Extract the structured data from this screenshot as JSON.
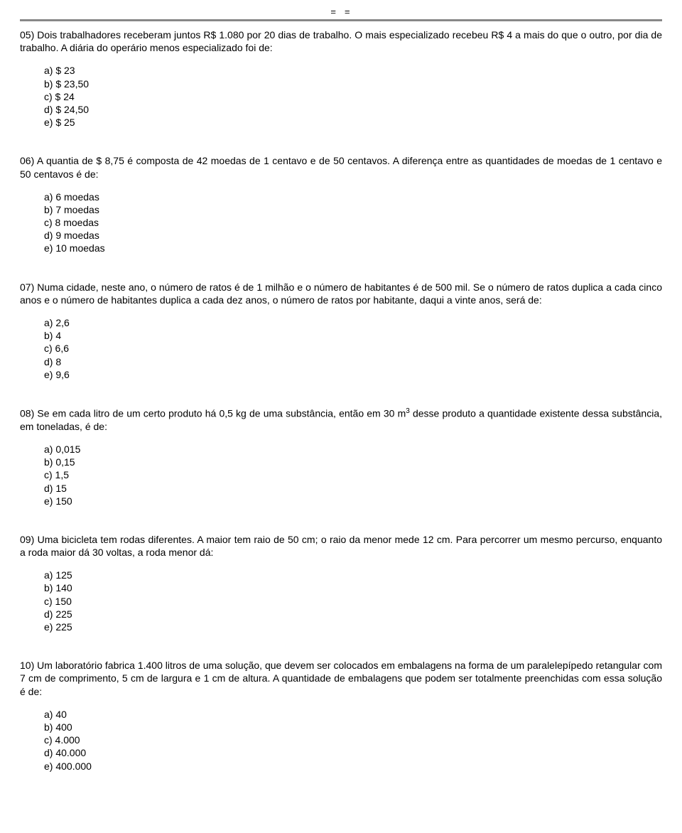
{
  "top_marks": "= =",
  "questions": [
    {
      "text": "05) Dois trabalhadores receberam juntos R$ 1.080 por 20 dias de trabalho. O mais especializado recebeu R$ 4 a mais do que o outro, por dia de trabalho. A diária do operário menos especializado foi de:",
      "opts": [
        "a) $ 23",
        "b) $ 23,50",
        "c) $ 24",
        "d) $ 24,50",
        "e) $ 25"
      ]
    },
    {
      "text": "06) A quantia de $ 8,75 é composta de 42 moedas de 1 centavo e de 50 centavos. A diferença entre as quantidades de moedas de 1 centavo e 50 centavos é de:",
      "opts": [
        "a) 6 moedas",
        "b) 7 moedas",
        "c) 8 moedas",
        "d) 9 moedas",
        "e) 10 moedas"
      ]
    },
    {
      "text": "07) Numa cidade, neste ano, o número de ratos é de 1 milhão e o número de habitantes é de 500 mil. Se o número de ratos duplica a cada cinco anos e o número de habitantes duplica a cada dez anos, o número de ratos por habitante, daqui a vinte anos, será de:",
      "opts": [
        "a) 2,6",
        "b) 4",
        "c) 6,6",
        "d) 8",
        "e) 9,6"
      ]
    },
    {
      "text_pre": "08) Se em cada litro de um certo produto há 0,5 kg de uma substância, então em 30 m",
      "sup": "3",
      "text_post": " desse produto a quantidade existente dessa substância, em toneladas, é de:",
      "opts": [
        "a) 0,015",
        "b) 0,15",
        "c) 1,5",
        "d) 15",
        "e) 150"
      ]
    },
    {
      "text": "09) Uma bicicleta tem rodas diferentes. A maior tem raio de 50 cm; o raio da menor mede 12 cm. Para percorrer um mesmo percurso, enquanto a roda maior dá 30 voltas, a roda menor dá:",
      "opts": [
        "a) 125",
        "b) 140",
        "c) 150",
        "d) 225",
        "e) 225"
      ]
    },
    {
      "text": "10) Um laboratório fabrica 1.400 litros de uma solução, que devem ser colocados em embalagens na forma de um paralelepípedo retangular com 7 cm de comprimento, 5 cm de largura e 1 cm de altura. A quantidade de embalagens que podem ser totalmente preenchidas com essa solução é de:",
      "opts": [
        "a) 40",
        "b) 400",
        "c) 4.000",
        "d) 40.000",
        "e) 400.000"
      ]
    }
  ]
}
